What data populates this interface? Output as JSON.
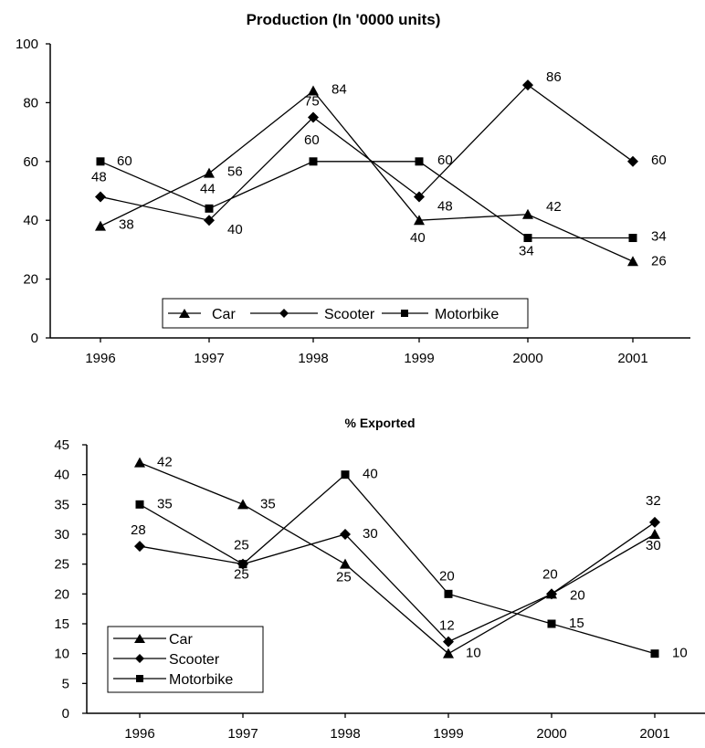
{
  "chart_data": [
    {
      "type": "line",
      "title": "Production (In '0000 units)",
      "categories": [
        "1996",
        "1997",
        "1998",
        "1999",
        "2000",
        "2001"
      ],
      "ylim": [
        0,
        100
      ],
      "yticks": [
        0,
        20,
        40,
        60,
        80,
        100
      ],
      "grid": false,
      "legend_placement": "bottom-center",
      "series": [
        {
          "name": "Car",
          "marker": "triangle",
          "values": [
            38,
            56,
            84,
            40,
            42,
            26
          ]
        },
        {
          "name": "Scooter",
          "marker": "diamond",
          "values": [
            48,
            40,
            75,
            48,
            86,
            60
          ]
        },
        {
          "name": "Motorbike",
          "marker": "square",
          "values": [
            60,
            44,
            60,
            60,
            34,
            34
          ]
        }
      ]
    },
    {
      "type": "line",
      "title": "% Exported",
      "categories": [
        "1996",
        "1997",
        "1998",
        "1999",
        "2000",
        "2001"
      ],
      "ylim": [
        0,
        45
      ],
      "yticks": [
        0,
        5,
        10,
        15,
        20,
        25,
        30,
        35,
        40,
        45
      ],
      "grid": false,
      "legend_placement": "bottom-left",
      "series": [
        {
          "name": "Car",
          "marker": "triangle",
          "values": [
            42,
            35,
            25,
            10,
            20,
            30
          ]
        },
        {
          "name": "Scooter",
          "marker": "diamond",
          "values": [
            28,
            25,
            30,
            12,
            20,
            32
          ]
        },
        {
          "name": "Motorbike",
          "marker": "square",
          "values": [
            35,
            25,
            40,
            20,
            15,
            10
          ]
        }
      ]
    }
  ]
}
